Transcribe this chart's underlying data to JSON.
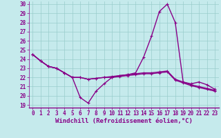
{
  "xlabel": "Windchill (Refroidissement éolien,°C)",
  "bg_color": "#c5eaec",
  "line_color": "#880088",
  "grid_color": "#99cccc",
  "spine_color": "#6699aa",
  "xlim": [
    -0.5,
    23.5
  ],
  "ylim": [
    18.7,
    30.3
  ],
  "xticks": [
    0,
    1,
    2,
    3,
    4,
    5,
    6,
    7,
    8,
    9,
    10,
    11,
    12,
    13,
    14,
    15,
    16,
    17,
    18,
    19,
    20,
    21,
    22,
    23
  ],
  "yticks": [
    19,
    20,
    21,
    22,
    23,
    24,
    25,
    26,
    27,
    28,
    29,
    30
  ],
  "line1_x": [
    0,
    1,
    2,
    3,
    4,
    5,
    6,
    7,
    8,
    9,
    10,
    11,
    12,
    13,
    14,
    15,
    16,
    17,
    18,
    19,
    20,
    21,
    22,
    23
  ],
  "line1_y": [
    24.5,
    23.8,
    23.2,
    23.0,
    22.5,
    22.0,
    19.8,
    19.2,
    20.5,
    21.3,
    22.0,
    22.2,
    22.3,
    22.5,
    24.2,
    26.5,
    29.2,
    30.0,
    28.0,
    21.5,
    21.3,
    21.5,
    21.2,
    20.7
  ],
  "line2_x": [
    0,
    1,
    2,
    3,
    4,
    5,
    6,
    7,
    8,
    9,
    10,
    11,
    12,
    13,
    14,
    15,
    16,
    17,
    18,
    19,
    20,
    21,
    22,
    23
  ],
  "line2_y": [
    24.5,
    23.8,
    23.2,
    23.0,
    22.5,
    22.0,
    22.0,
    21.8,
    21.9,
    22.0,
    22.1,
    22.2,
    22.3,
    22.4,
    22.5,
    22.5,
    22.6,
    22.7,
    21.8,
    21.5,
    21.2,
    21.0,
    20.8,
    20.6
  ],
  "line3_x": [
    0,
    1,
    2,
    3,
    4,
    5,
    6,
    7,
    8,
    9,
    10,
    11,
    12,
    13,
    14,
    15,
    16,
    17,
    18,
    19,
    20,
    21,
    22,
    23
  ],
  "line3_y": [
    24.5,
    23.8,
    23.2,
    23.0,
    22.5,
    22.0,
    22.0,
    21.8,
    21.9,
    22.0,
    22.0,
    22.1,
    22.2,
    22.3,
    22.4,
    22.4,
    22.5,
    22.6,
    21.7,
    21.4,
    21.1,
    20.9,
    20.7,
    20.5
  ],
  "marker_size": 2.5,
  "linewidth": 1.0,
  "tick_fontsize": 5.5,
  "label_fontsize": 6.5
}
